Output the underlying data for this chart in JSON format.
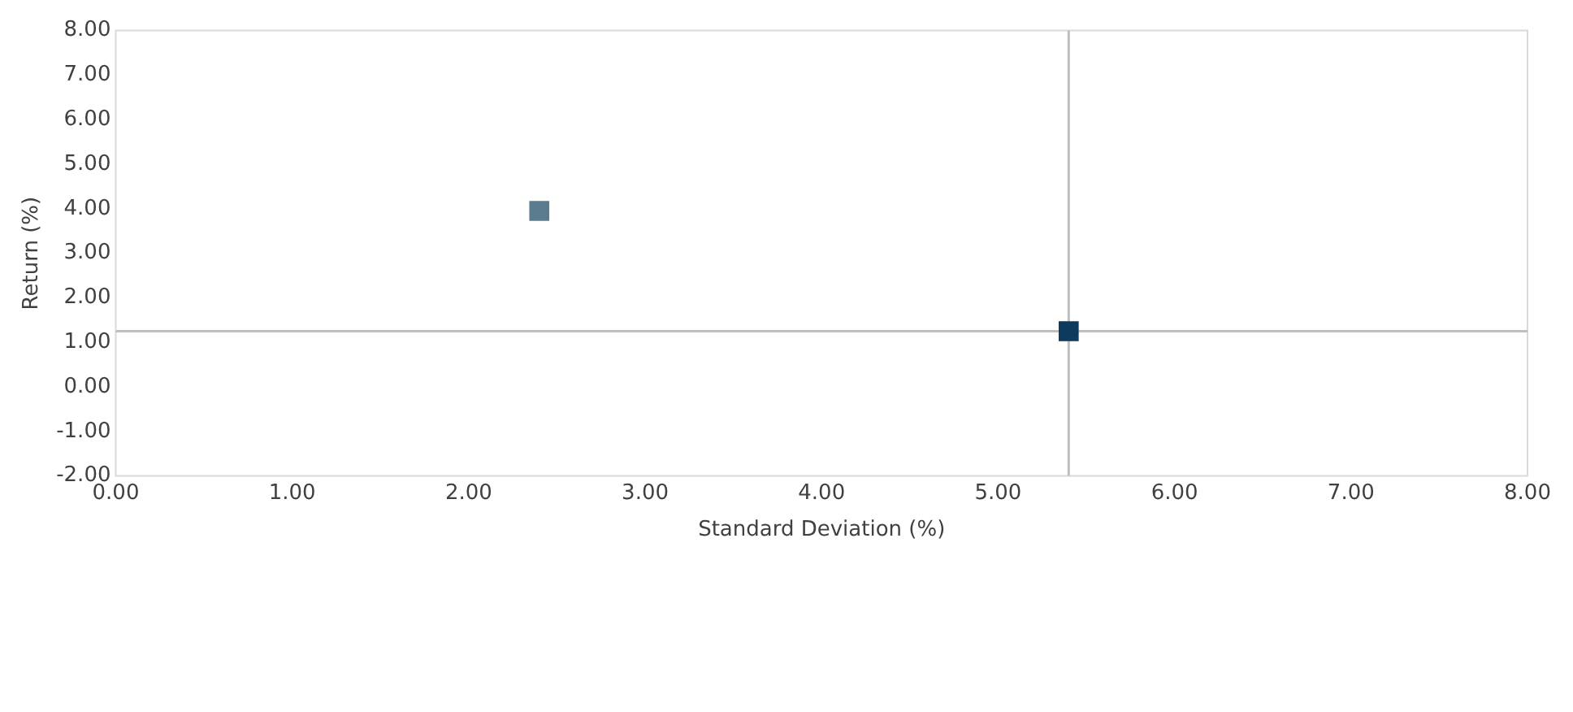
{
  "chart_data": {
    "type": "scatter",
    "xlabel": "Standard Deviation (%)",
    "ylabel": "Return (%)",
    "series": [
      {
        "color": "#5b7b8e",
        "x": [
          2.4
        ],
        "values": [
          3.95
        ]
      },
      {
        "color": "#0e3a5e",
        "x": [
          5.4
        ],
        "values": [
          1.25
        ]
      }
    ],
    "xlim": [
      0,
      8
    ],
    "ylim": [
      -2,
      8
    ],
    "xticks": [
      {
        "value": 0,
        "label": "0.00"
      },
      {
        "value": 1,
        "label": "1.00"
      },
      {
        "value": 2,
        "label": "2.00"
      },
      {
        "value": 3,
        "label": "3.00"
      },
      {
        "value": 4,
        "label": "4.00"
      },
      {
        "value": 5,
        "label": "5.00"
      },
      {
        "value": 6,
        "label": "6.00"
      },
      {
        "value": 7,
        "label": "7.00"
      },
      {
        "value": 8,
        "label": "8.00"
      }
    ],
    "yticks": [
      {
        "value": -2,
        "label": "-2.00"
      },
      {
        "value": -1,
        "label": "-1.00"
      },
      {
        "value": 0,
        "label": "0.00"
      },
      {
        "value": 1,
        "label": "1.00"
      },
      {
        "value": 2,
        "label": "2.00"
      },
      {
        "value": 3,
        "label": "3.00"
      },
      {
        "value": 4,
        "label": "4.00"
      },
      {
        "value": 5,
        "label": "5.00"
      },
      {
        "value": 6,
        "label": "6.00"
      },
      {
        "value": 7,
        "label": "7.00"
      },
      {
        "value": 8,
        "label": "8.00"
      }
    ],
    "ref_lines": [
      {
        "axis": "x",
        "value": 5.4,
        "color": "#bfbfbf"
      },
      {
        "axis": "y",
        "value": 1.25,
        "color": "#bfbfbf"
      }
    ],
    "marker": "square",
    "grid": false,
    "legend": false
  }
}
